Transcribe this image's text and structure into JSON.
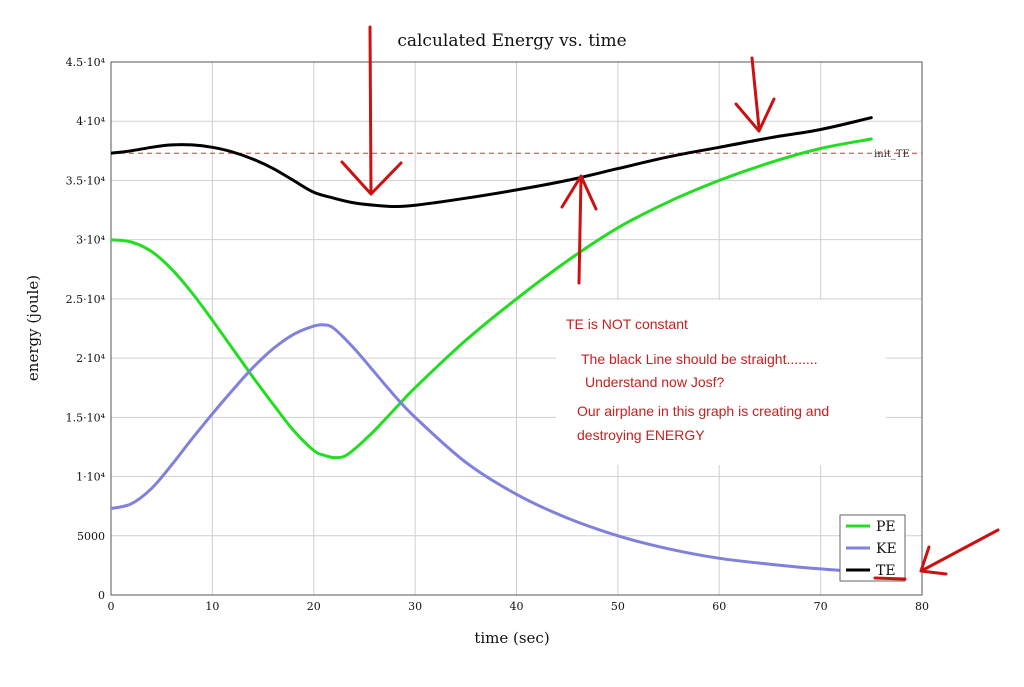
{
  "chart_data": {
    "type": "line",
    "title": "calculated Energy vs. time",
    "xlabel": "time (sec)",
    "ylabel": "energy (joule)",
    "xlim": [
      0,
      80
    ],
    "ylim": [
      0,
      45000
    ],
    "x_ticks": [
      0,
      10,
      20,
      30,
      40,
      50,
      60,
      70,
      80
    ],
    "y_ticks": [
      0,
      5000,
      10000,
      15000,
      20000,
      25000,
      30000,
      35000,
      40000,
      45000
    ],
    "y_tick_labels": [
      "0",
      "5000",
      "1·10⁴",
      "1.5·10⁴",
      "2·10⁴",
      "2.5·10⁴",
      "3·10⁴",
      "3.5·10⁴",
      "4·10⁴",
      "4.5·10⁴"
    ],
    "grid": true,
    "series": [
      {
        "name": "PE",
        "color": "#22dd22",
        "x": [
          0,
          2,
          4,
          6,
          8,
          10,
          12,
          14,
          16,
          18,
          20,
          21,
          22,
          23,
          24,
          26,
          28,
          30,
          35,
          40,
          45,
          50,
          55,
          60,
          65,
          70,
          75
        ],
        "y": [
          30000,
          29800,
          29000,
          27500,
          25500,
          23200,
          20800,
          18400,
          16100,
          13900,
          12200,
          11800,
          11600,
          11700,
          12300,
          13900,
          15700,
          17500,
          21500,
          25000,
          28200,
          31000,
          33200,
          35000,
          36500,
          37700,
          38500
        ]
      },
      {
        "name": "KE",
        "color": "#8080dd",
        "x": [
          0,
          2,
          4,
          6,
          8,
          10,
          12,
          14,
          16,
          18,
          20,
          21,
          22,
          24,
          26,
          28,
          30,
          35,
          40,
          45,
          50,
          55,
          60,
          65,
          70,
          75
        ],
        "y": [
          7300,
          7700,
          9000,
          11000,
          13200,
          15300,
          17300,
          19200,
          20800,
          22000,
          22700,
          22800,
          22500,
          20800,
          18800,
          16800,
          15000,
          11200,
          8500,
          6500,
          5000,
          3900,
          3100,
          2600,
          2200,
          1900
        ]
      },
      {
        "name": "TE",
        "color": "#000000",
        "x": [
          0,
          2,
          4,
          6,
          8,
          10,
          12,
          14,
          16,
          18,
          20,
          22,
          24,
          26,
          28,
          30,
          35,
          40,
          45,
          50,
          55,
          60,
          65,
          70,
          75
        ],
        "y": [
          37300,
          37500,
          37800,
          38000,
          38000,
          37800,
          37400,
          36800,
          36000,
          35000,
          34000,
          33500,
          33100,
          32900,
          32800,
          32900,
          33500,
          34200,
          35000,
          36000,
          37000,
          37800,
          38600,
          39300,
          40300
        ]
      }
    ],
    "reference_line": {
      "name": "init_TE",
      "y": 37300,
      "color": "#d83030",
      "style": "dashed"
    },
    "legend": {
      "position": "bottom-right",
      "entries": [
        "PE",
        "KE",
        "TE"
      ]
    },
    "annotations": [
      "TE is NOT constant",
      "The black Line should be straight........",
      "Understand now Josf?",
      "Our airplane in this graph is creating and",
      "destroying ENERGY"
    ],
    "annotation_color": "#c62020",
    "arrow_targets": [
      {
        "x": 26,
        "y": 33000,
        "note": "arrow down to TE dip"
      },
      {
        "x": 46,
        "y": 35000,
        "note": "arrow up to TE"
      },
      {
        "x": 64,
        "y": 38600,
        "note": "arrow down to TE"
      },
      {
        "x": 80,
        "y": 2200,
        "note": "arrow to TE legend"
      }
    ]
  }
}
